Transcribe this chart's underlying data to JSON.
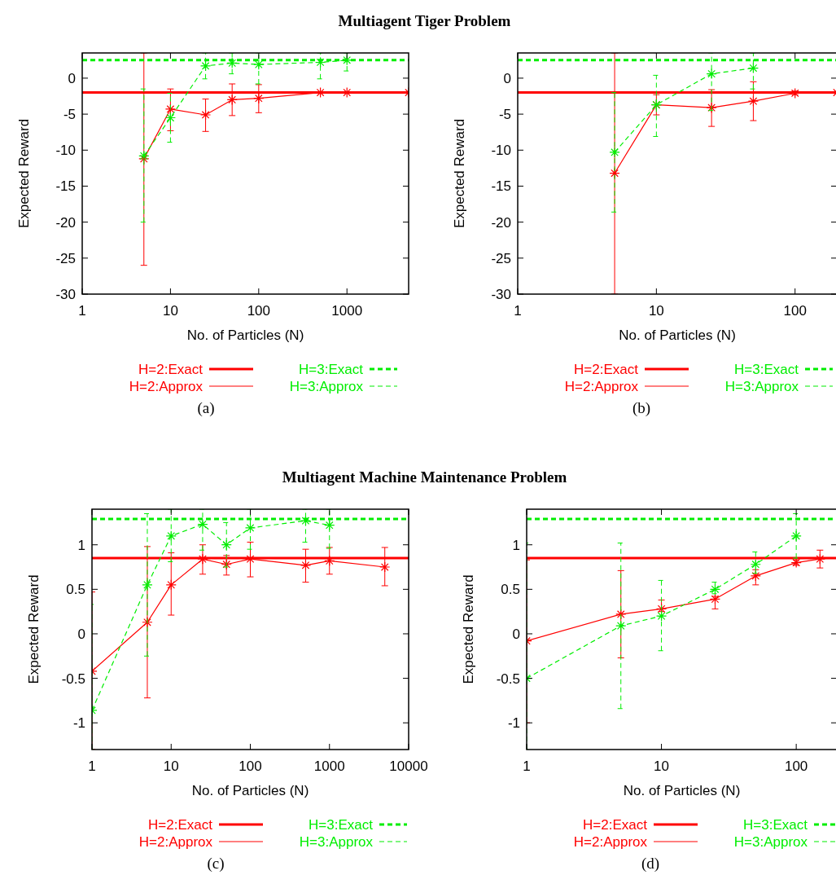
{
  "chart_data": [
    {
      "type": "line",
      "title": "Multiagent Tiger Problem",
      "xlabel": "No. of Particles (N)",
      "ylabel": "Expected Reward",
      "annotations": [
        "(a)"
      ],
      "log": "x",
      "xlim": [
        1,
        5000
      ],
      "xticks": [
        1,
        10,
        100,
        1000
      ],
      "ylim": [
        -30,
        3.5
      ],
      "yticks": [
        -30,
        -25,
        -20,
        -15,
        -10,
        -5,
        0
      ],
      "legend": "bottom",
      "grid": false,
      "series": [
        {
          "name": "H=2:Exact",
          "color": "#ff0000",
          "line_style": "solid",
          "x": [
            1,
            5000
          ],
          "values": [
            -2,
            -2
          ]
        },
        {
          "name": "H=2:Approx",
          "color": "#ff0000",
          "marker": "cross",
          "line_style": "solid",
          "x": [
            5,
            10,
            25,
            50,
            100,
            500,
            1000,
            5000
          ],
          "values": [
            -11.2,
            -4.3,
            -5.1,
            -3.0,
            -2.8,
            -2.0,
            -2.0,
            -2.0
          ],
          "errors": [
            [
              -26,
              3.5
            ],
            [
              -7.3,
              -1.5
            ],
            [
              -7.4,
              -2.9
            ],
            [
              -5.2,
              -0.8
            ],
            [
              -4.8,
              -0.9
            ],
            null,
            null,
            null
          ]
        },
        {
          "name": "H=3:Exact",
          "color": "#00ee00",
          "line_style": "dashed",
          "x": [
            1,
            5000
          ],
          "values": [
            2.5,
            2.5
          ]
        },
        {
          "name": "H=3:Approx",
          "color": "#00ee00",
          "marker": "cross",
          "line_style": "dashed",
          "x": [
            5,
            10,
            25,
            50,
            100,
            500,
            1000
          ],
          "values": [
            -10.8,
            -5.5,
            1.7,
            2.1,
            1.9,
            2.2,
            2.5
          ],
          "errors": [
            [
              -20,
              -1.5
            ],
            [
              -8.9,
              -2.1
            ],
            [
              -0.1,
              3.5
            ],
            [
              0.6,
              3.5
            ],
            [
              -0.8,
              3.5
            ],
            [
              -0.1,
              3.5
            ],
            [
              1.0,
              3.5
            ]
          ]
        }
      ]
    },
    {
      "type": "line",
      "xlabel": "No. of Particles (N)",
      "ylabel": "Expected Reward",
      "annotations": [
        "(b)"
      ],
      "log": "x",
      "xlim": [
        1,
        200
      ],
      "xticks": [
        1,
        10,
        100
      ],
      "ylim": [
        -30,
        3.5
      ],
      "yticks": [
        -30,
        -25,
        -20,
        -15,
        -10,
        -5,
        0
      ],
      "legend": "bottom",
      "grid": false,
      "series": [
        {
          "name": "H=2:Exact",
          "color": "#ff0000",
          "line_style": "solid",
          "x": [
            1,
            200
          ],
          "values": [
            -2,
            -2
          ]
        },
        {
          "name": "H=2:Approx",
          "color": "#ff0000",
          "marker": "cross",
          "line_style": "solid",
          "x": [
            5,
            10,
            25,
            50,
            100,
            200
          ],
          "values": [
            -13.2,
            -3.7,
            -4.1,
            -3.2,
            -2.1,
            -2.0
          ],
          "errors": [
            [
              -30,
              3.5
            ],
            [
              -5.1,
              -2.3
            ],
            [
              -6.7,
              -1.6
            ],
            [
              -5.9,
              -0.5
            ],
            [
              -2.3,
              -1.8
            ],
            null
          ]
        },
        {
          "name": "H=3:Exact",
          "color": "#00ee00",
          "line_style": "dashed",
          "x": [
            1,
            200
          ],
          "values": [
            2.5,
            2.5
          ]
        },
        {
          "name": "H=3:Approx",
          "color": "#00ee00",
          "marker": "cross",
          "line_style": "dashed",
          "x": [
            5,
            10,
            25,
            50
          ],
          "values": [
            -10.3,
            -3.7,
            0.6,
            1.4
          ],
          "errors": [
            [
              -18.6,
              -2.0
            ],
            [
              -8.1,
              0.4
            ],
            [
              -4.5,
              3.5
            ],
            [
              -1.5,
              3.5
            ]
          ]
        }
      ]
    },
    {
      "type": "line",
      "title": "Multiagent Machine Maintenance Problem",
      "xlabel": "No. of Particles (N)",
      "ylabel": "Expected Reward",
      "annotations": [
        "(c)"
      ],
      "log": "x",
      "xlim": [
        1,
        10000
      ],
      "xticks": [
        1,
        10,
        100,
        1000,
        10000
      ],
      "ylim": [
        -1.3,
        1.4
      ],
      "yticks": [
        -1,
        -0.5,
        0,
        0.5,
        1
      ],
      "legend": "bottom",
      "grid": false,
      "series": [
        {
          "name": "H=2:Exact",
          "color": "#ff0000",
          "line_style": "solid",
          "x": [
            1,
            10000
          ],
          "values": [
            0.85,
            0.85
          ]
        },
        {
          "name": "H=2:Approx",
          "color": "#ff0000",
          "marker": "cross",
          "line_style": "solid",
          "x": [
            1,
            5,
            10,
            25,
            50,
            100,
            500,
            1000,
            5000
          ],
          "values": [
            -0.42,
            0.13,
            0.55,
            0.84,
            0.78,
            0.84,
            0.77,
            0.82,
            0.75
          ],
          "errors": [
            [
              -1.3,
              0.47
            ],
            [
              -0.72,
              0.98
            ],
            [
              0.21,
              0.91
            ],
            [
              0.67,
              1.0
            ],
            [
              0.66,
              0.88
            ],
            [
              0.64,
              1.03
            ],
            [
              0.58,
              0.95
            ],
            [
              0.67,
              0.97
            ],
            [
              0.54,
              0.97
            ]
          ]
        },
        {
          "name": "H=3:Exact",
          "color": "#00ee00",
          "line_style": "dashed",
          "x": [
            1,
            10000
          ],
          "values": [
            1.29,
            1.29
          ]
        },
        {
          "name": "H=3:Approx",
          "color": "#00ee00",
          "marker": "cross",
          "line_style": "dashed",
          "x": [
            1,
            5,
            10,
            25,
            50,
            100,
            500,
            1000
          ],
          "values": [
            -0.86,
            0.55,
            1.1,
            1.23,
            1.0,
            1.19,
            1.27,
            1.22
          ],
          "errors": [
            [
              -1.3,
              0.33
            ],
            [
              -0.25,
              1.35
            ],
            [
              0.81,
              1.4
            ],
            [
              0.94,
              1.4
            ],
            [
              0.75,
              1.25
            ],
            [
              0.95,
              1.4
            ],
            [
              1.03,
              1.4
            ],
            [
              0.96,
              1.4
            ]
          ]
        }
      ]
    },
    {
      "type": "line",
      "xlabel": "No. of Particles (N)",
      "ylabel": "Expected Reward",
      "annotations": [
        "(d)"
      ],
      "log": "x",
      "xlim": [
        1,
        200
      ],
      "xticks": [
        1,
        10,
        100
      ],
      "ylim": [
        -1.3,
        1.4
      ],
      "yticks": [
        -1,
        -0.5,
        0,
        0.5,
        1
      ],
      "legend": "bottom",
      "grid": false,
      "series": [
        {
          "name": "H=2:Exact",
          "color": "#ff0000",
          "line_style": "solid",
          "x": [
            1,
            200
          ],
          "values": [
            0.85,
            0.85
          ]
        },
        {
          "name": "H=2:Approx",
          "color": "#ff0000",
          "marker": "cross",
          "line_style": "solid",
          "x": [
            1,
            5,
            10,
            25,
            50,
            100,
            150
          ],
          "values": [
            -0.08,
            0.22,
            0.28,
            0.39,
            0.65,
            0.8,
            0.84
          ],
          "errors": [
            [
              -1.0,
              0.83
            ],
            [
              -0.27,
              0.71
            ],
            [
              0.25,
              0.38
            ],
            [
              0.28,
              0.42
            ],
            [
              0.55,
              0.72
            ],
            [
              0.77,
              0.83
            ],
            [
              0.74,
              0.94
            ]
          ]
        },
        {
          "name": "H=3:Exact",
          "color": "#00ee00",
          "line_style": "dashed",
          "x": [
            1,
            200
          ],
          "values": [
            1.29,
            1.29
          ]
        },
        {
          "name": "H=3:Approx",
          "color": "#00ee00",
          "marker": "cross",
          "line_style": "dashed",
          "x": [
            1,
            5,
            10,
            25,
            50,
            100
          ],
          "values": [
            -0.5,
            0.09,
            0.2,
            0.5,
            0.78,
            1.1
          ],
          "errors": [
            [
              -1.3,
              1.02
            ],
            [
              -0.84,
              1.02
            ],
            [
              -0.19,
              0.6
            ],
            [
              0.45,
              0.58
            ],
            [
              0.68,
              0.92
            ],
            [
              0.85,
              1.35
            ]
          ]
        }
      ]
    }
  ]
}
